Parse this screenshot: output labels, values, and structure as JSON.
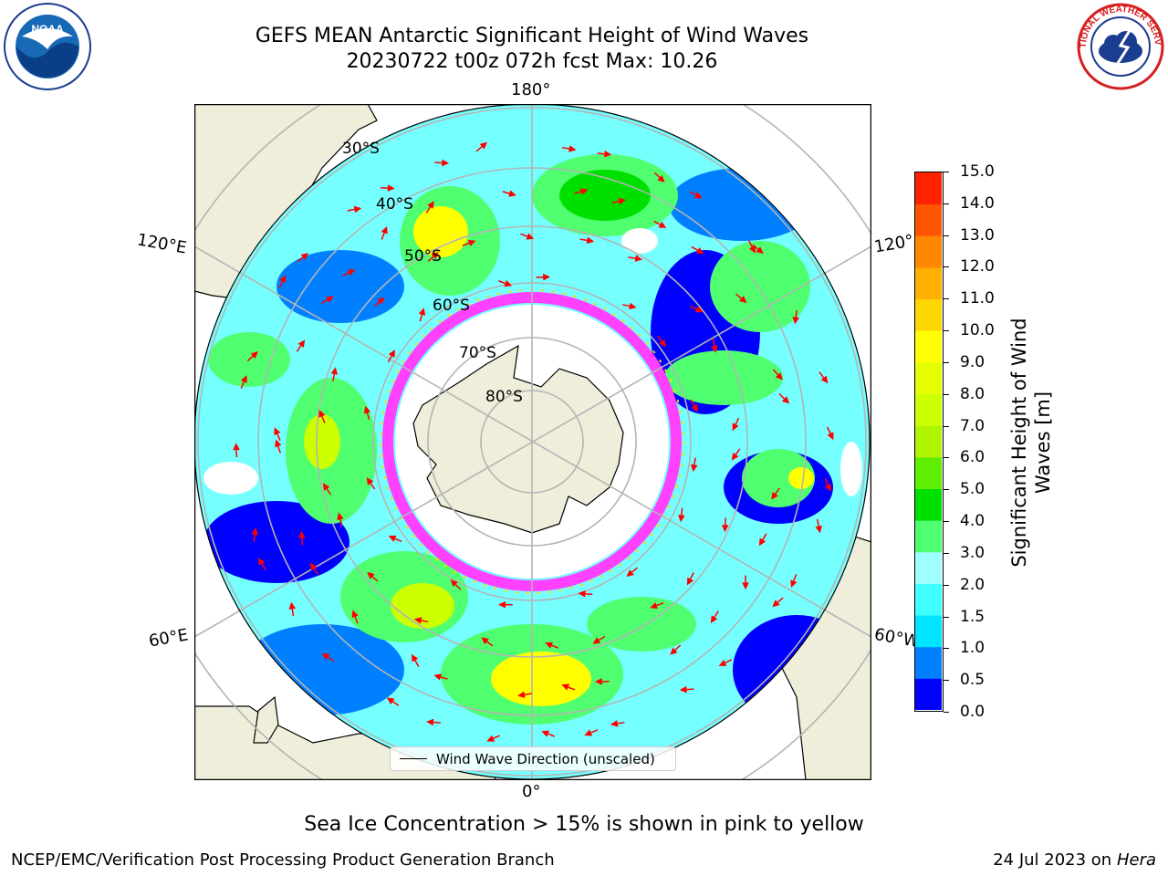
{
  "title": {
    "line1": "GEFS MEAN Antarctic Significant Height of Wind Waves",
    "line2": "20230722 t00z 072h fcst   Max: 10.26"
  },
  "map": {
    "projection": "south-polar-stereographic",
    "center": "South Pole",
    "longitude_labels": {
      "top": "180°",
      "upper_left": "120°E",
      "upper_right": "120°",
      "lower_left": "60°E",
      "lower_right": "60°W",
      "bottom": "0°"
    },
    "latitude_labels": [
      "30°S",
      "40°S",
      "50°S",
      "60°S",
      "70°S",
      "80°S"
    ],
    "colors": {
      "land": "#efeedb",
      "grid": "#b4b4b4",
      "arrows": "#ff0000",
      "sea_ice": "#ff40ff",
      "ice_shelf": "#ffffff"
    }
  },
  "legend": {
    "label": "Wind Wave Direction (unscaled)"
  },
  "colorbar": {
    "title": "Significant Height of Wind Waves [m]",
    "ticks": [
      "0.0",
      "0.5",
      "1.0",
      "1.5",
      "2.0",
      "3.0",
      "4.0",
      "5.0",
      "6.0",
      "7.0",
      "8.0",
      "9.0",
      "10.0",
      "11.0",
      "12.0",
      "13.0",
      "14.0",
      "15.0"
    ],
    "colors": [
      "#0000ff",
      "#0080ff",
      "#00e5ff",
      "#40ffff",
      "#a0ffff",
      "#50ff70",
      "#00e000",
      "#60ee00",
      "#b0f500",
      "#ccff00",
      "#e6ff00",
      "#ffff00",
      "#ffd700",
      "#ffb000",
      "#ff8800",
      "#ff5500",
      "#ff2200"
    ]
  },
  "caption": "Sea Ice Concentration > 15% is shown in pink to yellow",
  "footer": {
    "left": "NCEP/EMC/Verification Post Processing Product Generation Branch",
    "date": "24 Jul 2023 on ",
    "machine": "Hera"
  },
  "logos": {
    "left": "NOAA",
    "right": "NATIONAL WEATHER SERVICE"
  }
}
